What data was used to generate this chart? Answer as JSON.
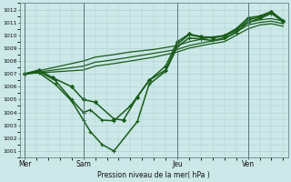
{
  "background_color": "#cce8e8",
  "grid_color": "#aacccc",
  "line_color": "#1a5c1a",
  "xlabel": "Pression niveau de la mer( hPa )",
  "ylim": [
    1000.5,
    1012.5
  ],
  "yticks": [
    1001,
    1002,
    1003,
    1004,
    1005,
    1006,
    1007,
    1008,
    1009,
    1010,
    1011,
    1012
  ],
  "xtick_labels": [
    "Mer",
    "Sam",
    "Jeu",
    "Ven"
  ],
  "xtick_positions": [
    0,
    2.5,
    6.5,
    9.5
  ],
  "xlim": [
    -0.2,
    11.2
  ],
  "vlines": [
    0,
    2.5,
    6.5,
    9.5
  ],
  "lines": [
    {
      "x": [
        0,
        2.5,
        3.0,
        3.8,
        4.5,
        5.5,
        6.5,
        7.0,
        7.8,
        8.5,
        9.5,
        10.0,
        10.5,
        11.0
      ],
      "y": [
        1007.0,
        1008.0,
        1008.3,
        1008.5,
        1008.7,
        1008.9,
        1009.2,
        1009.5,
        1009.8,
        1010.0,
        1011.0,
        1011.2,
        1011.3,
        1011.1
      ],
      "lw": 0.9,
      "marker": null
    },
    {
      "x": [
        0,
        2.5,
        3.0,
        3.8,
        4.5,
        5.5,
        6.5,
        7.0,
        7.8,
        8.5,
        9.5,
        10.0,
        10.5,
        11.0
      ],
      "y": [
        1007.0,
        1007.6,
        1007.9,
        1008.1,
        1008.3,
        1008.6,
        1008.9,
        1009.2,
        1009.5,
        1009.7,
        1010.8,
        1011.0,
        1011.1,
        1010.9
      ],
      "lw": 0.9,
      "marker": null
    },
    {
      "x": [
        0,
        2.5,
        3.0,
        3.8,
        4.5,
        5.5,
        6.5,
        7.0,
        7.8,
        8.5,
        9.5,
        10.0,
        10.5,
        11.0
      ],
      "y": [
        1007.0,
        1007.3,
        1007.6,
        1007.8,
        1008.0,
        1008.3,
        1008.7,
        1009.0,
        1009.3,
        1009.5,
        1010.5,
        1010.8,
        1010.9,
        1010.7
      ],
      "lw": 0.9,
      "marker": null
    },
    {
      "x": [
        0,
        0.6,
        1.2,
        2.0,
        2.5,
        3.0,
        3.8,
        4.2,
        4.8,
        5.3,
        6.0,
        6.5,
        7.0,
        7.5,
        8.0,
        8.5,
        9.0,
        9.5,
        10.0,
        10.5,
        11.0
      ],
      "y": [
        1007.0,
        1007.3,
        1006.7,
        1006.0,
        1005.0,
        1004.8,
        1003.5,
        1003.4,
        1005.2,
        1006.5,
        1007.6,
        1009.5,
        1010.1,
        1009.9,
        1009.8,
        1009.95,
        1010.5,
        1011.35,
        1011.5,
        1011.85,
        1011.15
      ],
      "lw": 1.1,
      "marker": "D"
    },
    {
      "x": [
        0,
        0.6,
        1.3,
        2.0,
        2.5,
        2.8,
        3.3,
        3.8,
        4.5,
        5.3,
        6.0,
        6.5,
        7.0,
        7.5,
        8.0,
        8.5,
        9.0,
        9.5,
        10.0,
        10.5,
        11.0
      ],
      "y": [
        1007.0,
        1007.2,
        1006.5,
        1005.0,
        1004.0,
        1004.2,
        1003.4,
        1003.35,
        1004.5,
        1006.5,
        1007.3,
        1009.3,
        1010.05,
        1009.85,
        1009.85,
        1009.95,
        1010.35,
        1011.2,
        1011.4,
        1011.8,
        1011.1
      ],
      "lw": 1.1,
      "marker": "+"
    },
    {
      "x": [
        0,
        0.6,
        1.3,
        2.0,
        2.5,
        2.8,
        3.3,
        3.8,
        4.8,
        5.3,
        6.0,
        6.5,
        7.0,
        7.5,
        8.0,
        8.5,
        9.0,
        9.5,
        10.0,
        10.5,
        11.0
      ],
      "y": [
        1007.0,
        1007.1,
        1006.2,
        1004.9,
        1003.4,
        1002.5,
        1001.5,
        1001.0,
        1003.3,
        1006.2,
        1007.2,
        1009.1,
        1009.8,
        1009.7,
        1009.6,
        1009.8,
        1010.2,
        1011.0,
        1011.3,
        1011.7,
        1011.05
      ],
      "lw": 1.1,
      "marker": "+"
    }
  ]
}
